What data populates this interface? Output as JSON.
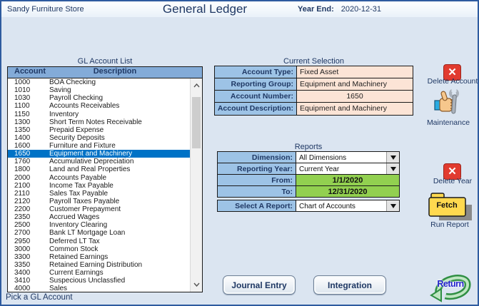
{
  "header": {
    "company": "Sandy Furniture Store",
    "title": "General Ledger",
    "year_end_label": "Year End:",
    "year_end_value": "2020-12-31"
  },
  "gl_list": {
    "title": "GL Account List",
    "columns": {
      "account": "Account",
      "description": "Description"
    },
    "selected_account": "1650",
    "rows": [
      {
        "account": "1000",
        "description": "BOA Checking"
      },
      {
        "account": "1010",
        "description": "Saving"
      },
      {
        "account": "1030",
        "description": "Payroll Checking"
      },
      {
        "account": "1100",
        "description": "Accounts Receivables"
      },
      {
        "account": "1150",
        "description": "Inventory"
      },
      {
        "account": "1300",
        "description": "Short Term Notes Receivable"
      },
      {
        "account": "1350",
        "description": "Prepaid Expense"
      },
      {
        "account": "1400",
        "description": "Security Deposits"
      },
      {
        "account": "1600",
        "description": "Furniture and Fixture"
      },
      {
        "account": "1650",
        "description": "Equipment and Machinery"
      },
      {
        "account": "1760",
        "description": "Accumulative Depreciation"
      },
      {
        "account": "1800",
        "description": "Land and Real Properties"
      },
      {
        "account": "2000",
        "description": "Accounts Payable"
      },
      {
        "account": "2100",
        "description": "Income Tax Payable"
      },
      {
        "account": "2110",
        "description": "Sales Tax Payable"
      },
      {
        "account": "2120",
        "description": "Payroll Taxes Payable"
      },
      {
        "account": "2200",
        "description": "Customer Prepayment"
      },
      {
        "account": "2350",
        "description": "Accrued Wages"
      },
      {
        "account": "2500",
        "description": "Inventory Clearing"
      },
      {
        "account": "2700",
        "description": "Bank LT Mortgage Loan"
      },
      {
        "account": "2950",
        "description": "Deferred LT Tax"
      },
      {
        "account": "3000",
        "description": "Common Stock"
      },
      {
        "account": "3300",
        "description": "Retained Earnings"
      },
      {
        "account": "3350",
        "description": "Retained Earning Distribution"
      },
      {
        "account": "3400",
        "description": "Current Earnings"
      },
      {
        "account": "3410",
        "description": "Suspecious Unclassfied"
      },
      {
        "account": "4000",
        "description": "Sales"
      }
    ]
  },
  "current_selection": {
    "title": "Current Selection",
    "fields": [
      {
        "label": "Account Type:",
        "value": "Fixed Asset",
        "align": "left"
      },
      {
        "label": "Reporting Group:",
        "value": "Equipment and Machinery",
        "align": "left"
      },
      {
        "label": "Account Number:",
        "value": "1650",
        "align": "center"
      },
      {
        "label": "Account Description:",
        "value": "Equipment and Machinery",
        "align": "left"
      }
    ]
  },
  "reports": {
    "title": "Reports",
    "dimension_label": "Dimension:",
    "dimension_value": "All Dimensions",
    "reporting_year_label": "Reporting Year:",
    "reporting_year_value": "Current Year",
    "from_label": "From:",
    "from_value": "1/1/2020",
    "to_label": "To:",
    "to_value": "12/31/2020",
    "select_report_label": "Select A Report:",
    "select_report_value": "Chart of Accounts"
  },
  "actions": {
    "delete_account_label": "Delete Account",
    "maintenance_label": "Maintenance",
    "delete_year_label": "Delete Year",
    "fetch_label": "Fetch",
    "run_report_label": "Run Report",
    "journal_entry_label": "Journal Entry",
    "integration_label": "Integration",
    "return_label": "Return"
  },
  "status_bar": {
    "text": "Pick a GL Account"
  },
  "icons": {
    "delete": "x-icon",
    "maintenance": "hand-wrench-icon",
    "fetch": "folder-icon",
    "return": "curved-arrow-icon",
    "combo": "chevron-down-icon"
  },
  "colors": {
    "bg": "#dbe5f1",
    "navy": "#1f3864",
    "listheader": "#83abd8",
    "selrow": "#0072c6",
    "labelcell": "#9dc3e6",
    "valuecell": "#fce4d6",
    "green": "#92d050",
    "red": "#e13b2f",
    "folder": "#ffd94f"
  }
}
